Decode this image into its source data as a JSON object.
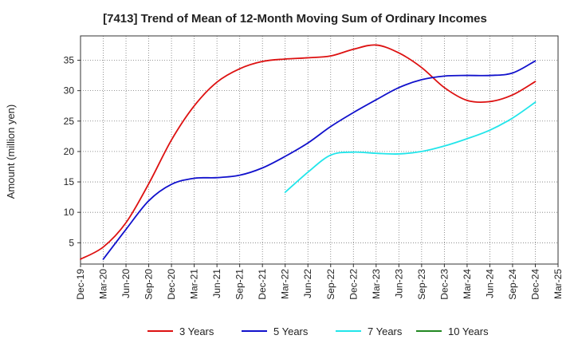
{
  "chart_data": {
    "type": "line",
    "title": "[7413]  Trend of Mean of 12-Month Moving Sum of Ordinary Incomes",
    "xlabel": "",
    "ylabel": "Amount (million yen)",
    "ylim": [
      1.5,
      39
    ],
    "yticks": [
      5,
      10,
      15,
      20,
      25,
      30,
      35
    ],
    "grid": true,
    "legend_position": "bottom",
    "categories": [
      "Dec-19",
      "Mar-20",
      "Jun-20",
      "Sep-20",
      "Dec-20",
      "Mar-21",
      "Jun-21",
      "Sep-21",
      "Dec-21",
      "Mar-22",
      "Jun-22",
      "Sep-22",
      "Dec-22",
      "Mar-23",
      "Jun-23",
      "Sep-23",
      "Dec-23",
      "Mar-24",
      "Jun-24",
      "Sep-24",
      "Dec-24",
      "Mar-25"
    ],
    "series": [
      {
        "name": "3 Years",
        "color": "#dd1111",
        "values": [
          2.3,
          4.3,
          8.3,
          14.7,
          21.9,
          27.5,
          31.4,
          33.6,
          34.8,
          35.2,
          35.4,
          35.7,
          36.8,
          37.5,
          36.2,
          33.8,
          30.5,
          28.4,
          28.2,
          29.3,
          31.5,
          null
        ]
      },
      {
        "name": "5 Years",
        "color": "#1111cc",
        "values": [
          null,
          2.3,
          7.2,
          11.9,
          14.6,
          15.6,
          15.7,
          16.1,
          17.3,
          19.2,
          21.4,
          24.1,
          26.4,
          28.5,
          30.5,
          31.8,
          32.4,
          32.5,
          32.5,
          32.9,
          34.9,
          null
        ]
      },
      {
        "name": "7 Years",
        "color": "#22e5ea",
        "values": [
          null,
          null,
          null,
          null,
          null,
          null,
          null,
          null,
          null,
          13.3,
          16.6,
          19.4,
          19.9,
          19.7,
          19.6,
          20.0,
          20.9,
          22.1,
          23.5,
          25.5,
          28.1,
          null
        ]
      },
      {
        "name": "10 Years",
        "color": "#228822",
        "values": [
          null,
          null,
          null,
          null,
          null,
          null,
          null,
          null,
          null,
          null,
          null,
          null,
          null,
          null,
          null,
          null,
          null,
          null,
          null,
          null,
          null,
          null
        ]
      }
    ]
  }
}
